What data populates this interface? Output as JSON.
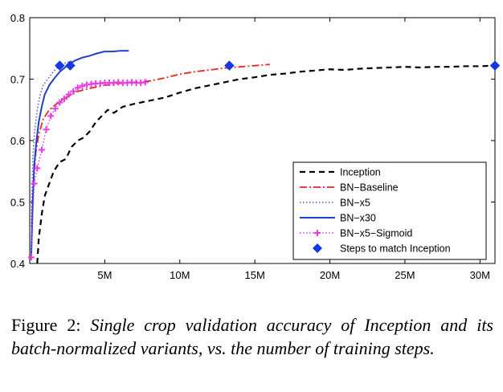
{
  "chart_data": {
    "type": "line",
    "xlim": [
      0,
      31000000
    ],
    "ylim": [
      0.4,
      0.8
    ],
    "x_tick_labels": [
      {
        "value": 5000000,
        "label": "5M"
      },
      {
        "value": 10000000,
        "label": "10M"
      },
      {
        "value": 15000000,
        "label": "15M"
      },
      {
        "value": 20000000,
        "label": "20M"
      },
      {
        "value": 25000000,
        "label": "25M"
      },
      {
        "value": 30000000,
        "label": "30M"
      }
    ],
    "y_tick_labels": [
      {
        "value": 0.4,
        "label": "0.4"
      },
      {
        "value": 0.5,
        "label": "0.5"
      },
      {
        "value": 0.6,
        "label": "0.6"
      },
      {
        "value": 0.7,
        "label": "0.7"
      },
      {
        "value": 0.8,
        "label": "0.8"
      }
    ],
    "grid": false,
    "legend_position": "bottom-right",
    "series": [
      {
        "name": "Inception",
        "style": "dashed",
        "color": "#000000",
        "points": [
          [
            500000,
            0.4
          ],
          [
            600000,
            0.44
          ],
          [
            800000,
            0.48
          ],
          [
            1000000,
            0.51
          ],
          [
            1300000,
            0.53
          ],
          [
            1600000,
            0.55
          ],
          [
            2000000,
            0.565
          ],
          [
            2400000,
            0.57
          ],
          [
            2800000,
            0.59
          ],
          [
            3200000,
            0.6
          ],
          [
            3600000,
            0.605
          ],
          [
            4000000,
            0.615
          ],
          [
            4400000,
            0.63
          ],
          [
            4800000,
            0.64
          ],
          [
            5200000,
            0.65
          ],
          [
            5600000,
            0.645
          ],
          [
            6200000,
            0.655
          ],
          [
            7000000,
            0.66
          ],
          [
            8000000,
            0.665
          ],
          [
            9000000,
            0.67
          ],
          [
            10000000,
            0.678
          ],
          [
            11000000,
            0.685
          ],
          [
            12000000,
            0.69
          ],
          [
            13000000,
            0.695
          ],
          [
            14000000,
            0.7
          ],
          [
            15000000,
            0.703
          ],
          [
            16000000,
            0.707
          ],
          [
            17000000,
            0.709
          ],
          [
            18000000,
            0.712
          ],
          [
            19000000,
            0.714
          ],
          [
            20000000,
            0.716
          ],
          [
            21000000,
            0.715
          ],
          [
            22000000,
            0.717
          ],
          [
            23000000,
            0.718
          ],
          [
            24000000,
            0.719
          ],
          [
            25000000,
            0.72
          ],
          [
            26000000,
            0.719
          ],
          [
            27000000,
            0.72
          ],
          [
            28000000,
            0.72
          ],
          [
            29000000,
            0.721
          ],
          [
            30000000,
            0.721
          ],
          [
            31000000,
            0.722
          ]
        ]
      },
      {
        "name": "BN-Baseline",
        "style": "dashdot",
        "color": "#e8271c",
        "points": [
          [
            250000,
            0.53
          ],
          [
            400000,
            0.58
          ],
          [
            600000,
            0.61
          ],
          [
            900000,
            0.635
          ],
          [
            1300000,
            0.65
          ],
          [
            1800000,
            0.66
          ],
          [
            2400000,
            0.67
          ],
          [
            3200000,
            0.68
          ],
          [
            4000000,
            0.685
          ],
          [
            5000000,
            0.69
          ],
          [
            6000000,
            0.693
          ],
          [
            7000000,
            0.695
          ],
          [
            8000000,
            0.697
          ],
          [
            9000000,
            0.702
          ],
          [
            10000000,
            0.708
          ],
          [
            11000000,
            0.712
          ],
          [
            12000000,
            0.715
          ],
          [
            13000000,
            0.718
          ],
          [
            14000000,
            0.72
          ],
          [
            15000000,
            0.722
          ],
          [
            16000000,
            0.724
          ]
        ]
      },
      {
        "name": "BN-x5",
        "style": "dotted",
        "color": "#5a5ad0",
        "points": [
          [
            100000,
            0.46
          ],
          [
            200000,
            0.57
          ],
          [
            350000,
            0.62
          ],
          [
            500000,
            0.65
          ],
          [
            700000,
            0.675
          ],
          [
            900000,
            0.69
          ],
          [
            1200000,
            0.7
          ],
          [
            1500000,
            0.71
          ],
          [
            1800000,
            0.718
          ],
          [
            2200000,
            0.725
          ],
          [
            2600000,
            0.728
          ],
          [
            3000000,
            0.73
          ]
        ]
      },
      {
        "name": "BN-x30",
        "style": "solid",
        "color": "#1f3fd0",
        "points": [
          [
            100000,
            0.41
          ],
          [
            200000,
            0.5
          ],
          [
            300000,
            0.56
          ],
          [
            450000,
            0.6
          ],
          [
            600000,
            0.63
          ],
          [
            800000,
            0.655
          ],
          [
            1000000,
            0.675
          ],
          [
            1300000,
            0.69
          ],
          [
            1600000,
            0.7
          ],
          [
            2000000,
            0.712
          ],
          [
            2500000,
            0.722
          ],
          [
            3000000,
            0.73
          ],
          [
            3500000,
            0.735
          ],
          [
            4000000,
            0.738
          ],
          [
            4500000,
            0.742
          ],
          [
            5000000,
            0.745
          ],
          [
            5500000,
            0.745
          ],
          [
            6000000,
            0.746
          ],
          [
            6600000,
            0.746
          ]
        ]
      },
      {
        "name": "BN-x5-Sigmoid",
        "style": "dotted-plus",
        "color": "#e83ce8",
        "points": [
          [
            100000,
            0.41
          ],
          [
            300000,
            0.53
          ],
          [
            500000,
            0.555
          ],
          [
            800000,
            0.585
          ],
          [
            1100000,
            0.618
          ],
          [
            1400000,
            0.64
          ],
          [
            1700000,
            0.652
          ],
          [
            2000000,
            0.662
          ],
          [
            2300000,
            0.668
          ],
          [
            2600000,
            0.675
          ],
          [
            2900000,
            0.68
          ],
          [
            3200000,
            0.686
          ],
          [
            3500000,
            0.689
          ],
          [
            3800000,
            0.691
          ],
          [
            4100000,
            0.692
          ],
          [
            4400000,
            0.693
          ],
          [
            4700000,
            0.693
          ],
          [
            5000000,
            0.694
          ],
          [
            5300000,
            0.694
          ],
          [
            5600000,
            0.694
          ],
          [
            5900000,
            0.695
          ],
          [
            6200000,
            0.694
          ],
          [
            6500000,
            0.694
          ],
          [
            6800000,
            0.695
          ],
          [
            7100000,
            0.694
          ],
          [
            7400000,
            0.694
          ],
          [
            7700000,
            0.695
          ]
        ]
      }
    ],
    "markers": {
      "name": "Steps to match Inception",
      "color": "#1538e0",
      "shape": "diamond",
      "points": [
        [
          2000000,
          0.722
        ],
        [
          2700000,
          0.722
        ],
        [
          13300000,
          0.722
        ],
        [
          31000000,
          0.722
        ]
      ]
    },
    "legend": [
      {
        "label": "Inception"
      },
      {
        "label": "BN−Baseline"
      },
      {
        "label": "BN−x5"
      },
      {
        "label": "BN−x30"
      },
      {
        "label": "BN−x5−Sigmoid"
      },
      {
        "label": "Steps to match Inception"
      }
    ]
  },
  "caption": {
    "lead": "Figure 2: ",
    "body": "Single crop validation accuracy of Inception and its batch-normalized variants, vs.  the number of training steps."
  }
}
